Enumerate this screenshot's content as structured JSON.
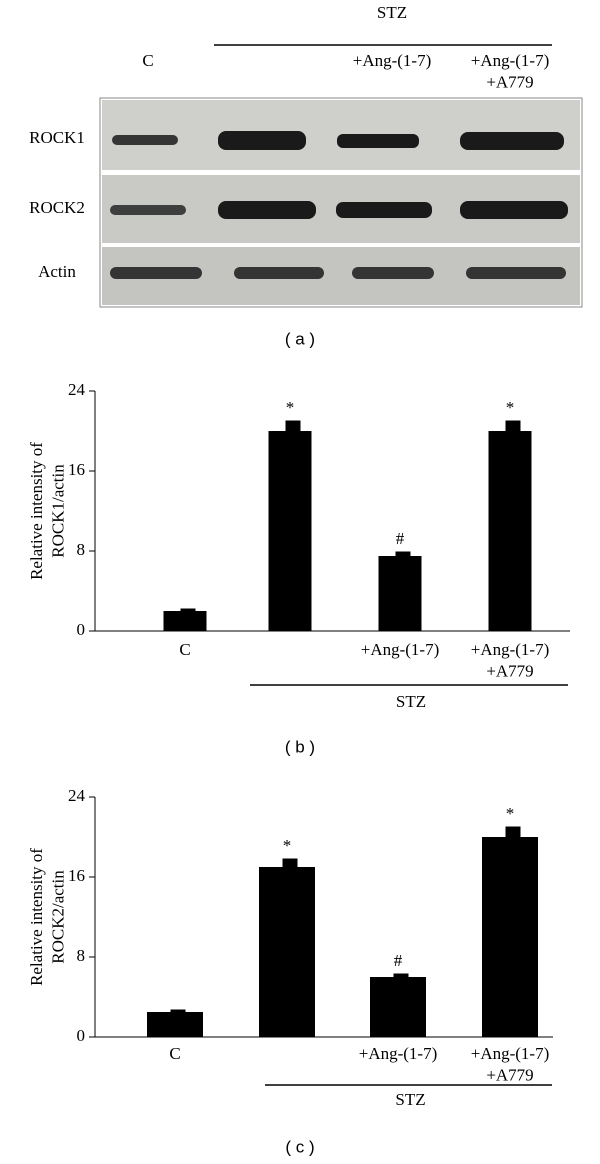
{
  "blot": {
    "panel_label": "( a )",
    "group": "STZ",
    "lanes": [
      "C",
      null,
      "+Ang-(1-7)",
      "+Ang-(1-7)\n+A779"
    ],
    "rows": [
      "ROCK1",
      "ROCK2",
      "Actin"
    ]
  },
  "chart_data": [
    {
      "type": "bar",
      "panel_label": "( b )",
      "ylabel": "Relative intensity of\nROCK1/actin",
      "categories": [
        "C",
        null,
        "+Ang-(1-7)",
        "+Ang-(1-7)\n+A779"
      ],
      "values": [
        2,
        20,
        7.5,
        20
      ],
      "errors": [
        0.2,
        1,
        0.4,
        1
      ],
      "markers": [
        null,
        "*",
        "#",
        "*"
      ],
      "group": "STZ",
      "color": "#000000",
      "ylim": [
        0,
        24
      ],
      "yticks": [
        0,
        8,
        16,
        24
      ]
    },
    {
      "type": "bar",
      "panel_label": "( c )",
      "ylabel": "Relative intensity of\nROCK2/actin",
      "categories": [
        "C",
        null,
        "+Ang-(1-7)",
        "+Ang-(1-7)\n+A779"
      ],
      "values": [
        2.5,
        17,
        6,
        20
      ],
      "errors": [
        0.2,
        0.8,
        0.3,
        1
      ],
      "markers": [
        null,
        "*",
        "#",
        "*"
      ],
      "group": "STZ",
      "color": "#000000",
      "ylim": [
        0,
        24
      ],
      "yticks": [
        0,
        8,
        16,
        24
      ]
    }
  ]
}
